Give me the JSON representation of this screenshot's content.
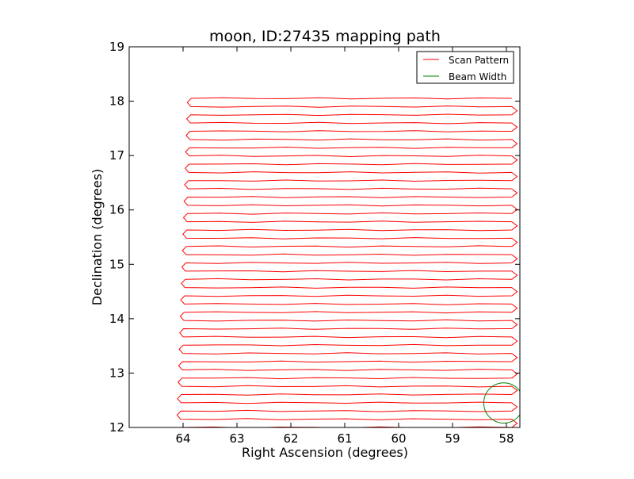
{
  "chart_data": {
    "type": "line",
    "title": "moon, ID:27435 mapping path",
    "xlabel": "Right Ascension (degrees)",
    "ylabel": "Declination (degrees)",
    "xlim": [
      65.0,
      57.75
    ],
    "ylim": [
      12,
      19
    ],
    "x_inverted": true,
    "x_ticks": [
      64,
      63,
      62,
      61,
      60,
      59,
      58
    ],
    "x_tick_labels": [
      "64",
      "63",
      "62",
      "61",
      "60",
      "59",
      "58"
    ],
    "y_ticks": [
      12,
      13,
      14,
      15,
      16,
      17,
      18,
      19
    ],
    "y_tick_labels": [
      "12",
      "13",
      "14",
      "15",
      "16",
      "17",
      "18",
      "19"
    ],
    "grid": false,
    "legend_position": "top-right",
    "colors": {
      "scan": "#ff0000",
      "beam": "#008000"
    },
    "series": [
      {
        "name": "Scan Pattern",
        "kind": "raster",
        "dec_start": 12.0,
        "dec_end": 18.05,
        "dec_step": 0.1513,
        "ra_east_start": 64.05,
        "ra_east_end": 63.85,
        "ra_west": 57.9,
        "turn_overshoot_west": 0.1,
        "turn_overshoot_east": 0.07
      },
      {
        "name": "Beam Width",
        "kind": "circle",
        "center_ra": 58.05,
        "center_dec": 12.45,
        "radius_deg": 0.37
      }
    ]
  }
}
